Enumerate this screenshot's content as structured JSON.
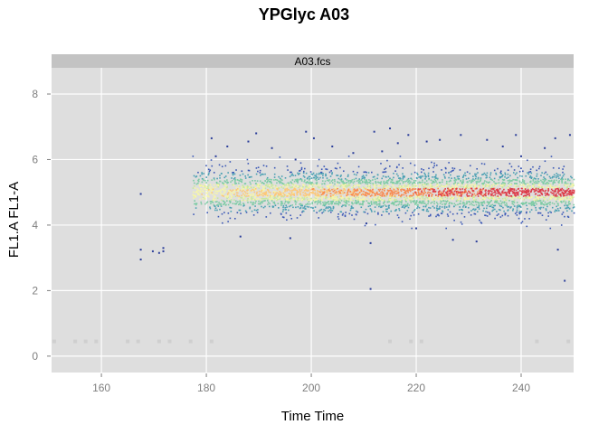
{
  "chart_data": {
    "type": "scatter",
    "title": "YPGlyc A03",
    "panel_title": "A03.fcs",
    "xlabel": "Time Time",
    "ylabel": "FL1.A FL1-A",
    "xlim": [
      150.5,
      250
    ],
    "ylim": [
      -0.5,
      8.8
    ],
    "xticks": [
      160,
      180,
      200,
      220,
      240
    ],
    "yticks": [
      0,
      2,
      4,
      6,
      8
    ],
    "grid": true,
    "colors": {
      "panel_background": "#dedede",
      "gridline": "#ffffff",
      "strip_background": "#c3c3c3",
      "zero_events": "#cfcfcf",
      "outlier_points": "#2b3e9a",
      "density_palette": [
        "#3b58b6",
        "#4aa0b3",
        "#7ccba4",
        "#c8e89c",
        "#f7f6a8",
        "#fdc877",
        "#f88a50",
        "#dd3d4a"
      ]
    },
    "zero_events_x": [
      151,
      155,
      157,
      159,
      165,
      167,
      171,
      173,
      177,
      181,
      215,
      219,
      221,
      243,
      249
    ],
    "zero_events_y": 0.45,
    "outliers": [
      {
        "x": 167.5,
        "y": 4.95
      },
      {
        "x": 167.5,
        "y": 3.25
      },
      {
        "x": 167.5,
        "y": 2.95
      },
      {
        "x": 169.8,
        "y": 3.2
      },
      {
        "x": 171.0,
        "y": 3.15
      },
      {
        "x": 171.8,
        "y": 3.3
      },
      {
        "x": 171.8,
        "y": 3.2
      },
      {
        "x": 181.0,
        "y": 6.65
      },
      {
        "x": 181.8,
        "y": 6.1
      },
      {
        "x": 184.0,
        "y": 6.4
      },
      {
        "x": 186.5,
        "y": 3.65
      },
      {
        "x": 188.0,
        "y": 6.55
      },
      {
        "x": 189.5,
        "y": 6.8
      },
      {
        "x": 192.5,
        "y": 6.35
      },
      {
        "x": 196.0,
        "y": 3.6
      },
      {
        "x": 197.0,
        "y": 6.0
      },
      {
        "x": 199.0,
        "y": 6.85
      },
      {
        "x": 200.5,
        "y": 6.65
      },
      {
        "x": 204.0,
        "y": 6.4
      },
      {
        "x": 208.0,
        "y": 6.2
      },
      {
        "x": 210.5,
        "y": 4.05
      },
      {
        "x": 211.3,
        "y": 3.45
      },
      {
        "x": 211.3,
        "y": 2.05
      },
      {
        "x": 212.0,
        "y": 6.85
      },
      {
        "x": 213.5,
        "y": 6.25
      },
      {
        "x": 215.0,
        "y": 6.95
      },
      {
        "x": 216.5,
        "y": 6.5
      },
      {
        "x": 218.5,
        "y": 6.75
      },
      {
        "x": 220.0,
        "y": 3.9
      },
      {
        "x": 222.0,
        "y": 6.55
      },
      {
        "x": 224.5,
        "y": 6.6
      },
      {
        "x": 227.0,
        "y": 3.55
      },
      {
        "x": 228.5,
        "y": 6.75
      },
      {
        "x": 231.5,
        "y": 3.5
      },
      {
        "x": 233.5,
        "y": 6.6
      },
      {
        "x": 236.5,
        "y": 6.4
      },
      {
        "x": 239.0,
        "y": 6.75
      },
      {
        "x": 240.0,
        "y": 6.1
      },
      {
        "x": 244.5,
        "y": 6.35
      },
      {
        "x": 246.5,
        "y": 6.65
      },
      {
        "x": 247.0,
        "y": 3.25
      },
      {
        "x": 248.3,
        "y": 2.3
      },
      {
        "x": 249.3,
        "y": 6.75
      }
    ],
    "main_population": {
      "x_range": [
        177.5,
        250
      ],
      "y_center": 5.0,
      "y_spread": 0.55,
      "dense_x_start": 200
    }
  }
}
